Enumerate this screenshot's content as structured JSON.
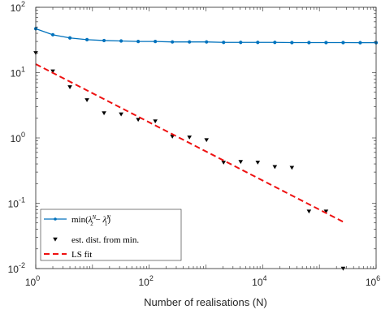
{
  "chart_data": {
    "type": "scatter",
    "xlabel": "Number of realisations (N)",
    "ylabel": "",
    "xscale": "log",
    "yscale": "log",
    "xlim": [
      1,
      1000000
    ],
    "ylim": [
      0.01,
      100
    ],
    "grid": false,
    "legend_position": "bottom-left",
    "x_ticks": [
      {
        "value": 1,
        "base": "10",
        "exp": "0"
      },
      {
        "value": 100,
        "base": "10",
        "exp": "2"
      },
      {
        "value": 10000,
        "base": "10",
        "exp": "4"
      },
      {
        "value": 1000000,
        "base": "10",
        "exp": "6"
      }
    ],
    "y_ticks": [
      {
        "value": 0.01,
        "base": "10",
        "exp": "-2"
      },
      {
        "value": 0.1,
        "base": "10",
        "exp": "-1"
      },
      {
        "value": 1,
        "base": "10",
        "exp": "0"
      },
      {
        "value": 10,
        "base": "10",
        "exp": "1"
      },
      {
        "value": 100,
        "base": "10",
        "exp": "2"
      }
    ],
    "series": [
      {
        "name": "min(λ2N − λ1N)",
        "legend_html": "min(<tspan font-style='italic'>λ</tspan><tspan baseline-shift='super' font-size='7' font-style='italic'>N</tspan><tspan dx='-7' baseline-shift='sub' font-size='7'>2</tspan><tspan> − </tspan><tspan font-style='italic'>λ</tspan><tspan baseline-shift='super' font-size='7' font-style='italic'>N</tspan><tspan dx='-7' baseline-shift='sub' font-size='7'>1</tspan>)",
        "style": "line-markers",
        "color": "#0072BD",
        "x": [
          1,
          2,
          4,
          8,
          16,
          32,
          64,
          128,
          256,
          512,
          1024,
          2048,
          4096,
          8192,
          16384,
          32768,
          65536,
          131072,
          262144,
          524288,
          1000000
        ],
        "y": [
          47,
          38,
          34,
          32,
          31,
          30.5,
          30,
          30,
          29.5,
          29.5,
          29.5,
          29,
          29,
          29,
          29,
          28.8,
          28.8,
          28.8,
          28.8,
          28.7,
          28.7
        ]
      },
      {
        "name": "est. dist. from min.",
        "style": "triangle-markers",
        "color": "#000000",
        "x": [
          1,
          2,
          4,
          8,
          16,
          32,
          64,
          128,
          256,
          512,
          1024,
          2048,
          4096,
          8192,
          16384,
          32768,
          65536,
          131072,
          262144
        ],
        "y": [
          20,
          10.5,
          6,
          3.8,
          2.4,
          2.3,
          1.9,
          1.8,
          1.05,
          1.02,
          0.93,
          0.42,
          0.43,
          0.42,
          0.36,
          0.35,
          0.075,
          0.075,
          0.01
        ]
      },
      {
        "name": "LS fit",
        "style": "dashed-line",
        "color": "#EE1111",
        "x": [
          1,
          262144
        ],
        "y": [
          13.5,
          0.052
        ]
      }
    ]
  }
}
